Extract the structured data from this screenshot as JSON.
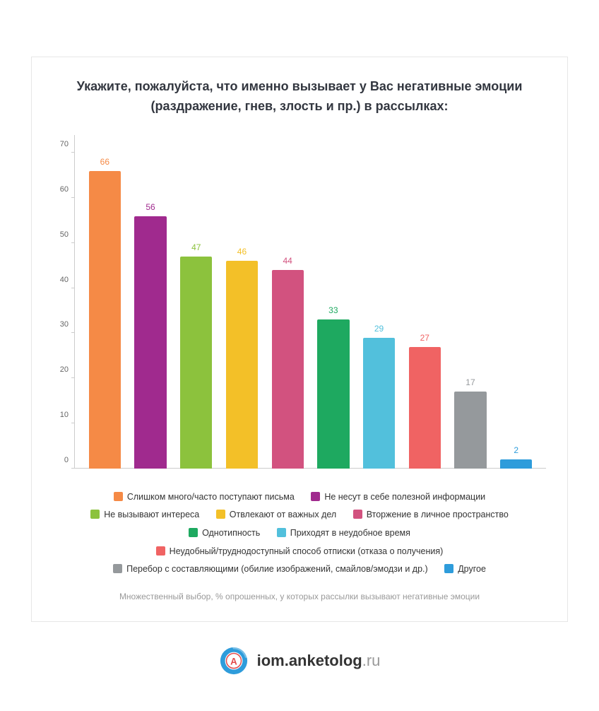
{
  "chart": {
    "type": "bar",
    "title": "Укажите, пожалуйста, что именно вызывает у Вас негативные эмоции (раздражение, гнев, злость и пр.) в рассылках:",
    "title_fontsize": 18,
    "title_color": "#333740",
    "subtitle": "Множественный выбор, % опрошенных, у которых рассылки вызывают негативные эмоции",
    "subtitle_fontsize": 12,
    "subtitle_color": "#999999",
    "background_color": "#ffffff",
    "card_border_color": "#e6e6e6",
    "axis_color": "#cccccc",
    "tick_label_color": "#666666",
    "tick_label_fontsize": 11,
    "bar_label_fontsize": 12,
    "ylim": [
      0,
      74
    ],
    "yticks": [
      0,
      10,
      20,
      30,
      40,
      50,
      60,
      70
    ],
    "bar_width": 0.7,
    "series": [
      {
        "label": "Слишком много/часто поступают письма",
        "value": 66,
        "color": "#f58a46"
      },
      {
        "label": "Не несут в себе полезной информации",
        "value": 56,
        "color": "#a02a8e"
      },
      {
        "label": "Не вызывают интереса",
        "value": 47,
        "color": "#8cc23d"
      },
      {
        "label": "Отвлекают от важных дел",
        "value": 46,
        "color": "#f3c028"
      },
      {
        "label": "Вторжение в личное пространство",
        "value": 44,
        "color": "#d2527f"
      },
      {
        "label": "Однотипность",
        "value": 33,
        "color": "#1ea960"
      },
      {
        "label": "Приходят в неудобное время",
        "value": 29,
        "color": "#52c0dc"
      },
      {
        "label": "Неудобный/труднодоступный способ отписки (отказа о получения)",
        "value": 27,
        "color": "#f06363"
      },
      {
        "label": "Перебор с составляющими (обилие изображений, смайлов/эмодзи и др.)",
        "value": 17,
        "color": "#95999c"
      },
      {
        "label": "Другое",
        "value": 2,
        "color": "#2e9cdb"
      }
    ],
    "legend_fontsize": 12.5,
    "legend_color": "#333333"
  },
  "brand": {
    "name_main": "iom.anketolog",
    "name_tld": ".ru",
    "name_fontsize": 22,
    "name_color": "#333333",
    "tld_color": "#999999",
    "logo": {
      "outer_color": "#2e9cdb",
      "inner_bg": "#ffffff",
      "inner_ring": "#e34b4b",
      "glyph": "A",
      "glyph_color": "#e34b4b"
    }
  }
}
